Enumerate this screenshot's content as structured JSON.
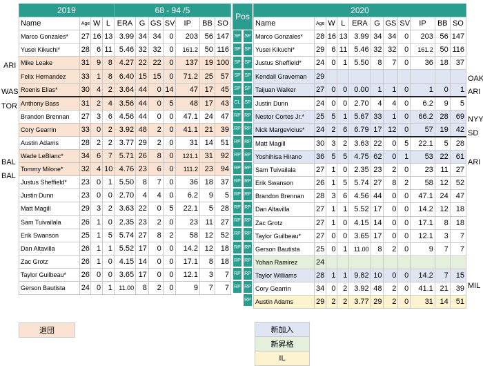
{
  "left": {
    "year": "2019",
    "record": "68 - 94 /5",
    "headers": [
      "Name",
      "Age",
      "W",
      "L",
      "ERA",
      "G",
      "GS",
      "SV",
      "IP",
      "BB",
      "SO"
    ],
    "rows": [
      {
        "cells": [
          "Marco Gonzales*",
          "27",
          "16",
          "13",
          "3.99",
          "34",
          "34",
          "0",
          "203",
          "56",
          "147"
        ],
        "style": ""
      },
      {
        "cells": [
          "Yusei Kikuchi*",
          "28",
          "6",
          "11",
          "5.46",
          "32",
          "32",
          "0",
          "161.2",
          "50",
          "116"
        ],
        "style": ""
      },
      {
        "cells": [
          "Mike Leake",
          "31",
          "9",
          "8",
          "4.27",
          "22",
          "22",
          "0",
          "137",
          "19",
          "100"
        ],
        "style": "left"
      },
      {
        "cells": [
          "Felix Hernandez",
          "33",
          "1",
          "8",
          "6.40",
          "15",
          "15",
          "0",
          "71.2",
          "25",
          "57"
        ],
        "style": "left"
      },
      {
        "cells": [
          "Roenis Elias*",
          "30",
          "4",
          "2",
          "3.64",
          "44",
          "0",
          "14",
          "47",
          "17",
          "45"
        ],
        "style": "left bd"
      },
      {
        "cells": [
          "Anthony Bass",
          "31",
          "2",
          "4",
          "3.56",
          "44",
          "0",
          "5",
          "48",
          "17",
          "43"
        ],
        "style": "left"
      },
      {
        "cells": [
          "Brandon Brennan",
          "27",
          "3",
          "6",
          "4.56",
          "44",
          "0",
          "0",
          "47.1",
          "24",
          "47"
        ],
        "style": ""
      },
      {
        "cells": [
          "Cory Gearrin",
          "33",
          "0",
          "2",
          "3.92",
          "48",
          "2",
          "0",
          "41.1",
          "21",
          "39"
        ],
        "style": "left"
      },
      {
        "cells": [
          "Austin Adams",
          "28",
          "2",
          "2",
          "3.77",
          "29",
          "2",
          "0",
          "31",
          "14",
          "51"
        ],
        "style": ""
      },
      {
        "cells": [
          "Wade LeBlanc*",
          "34",
          "6",
          "7",
          "5.71",
          "26",
          "8",
          "0",
          "121.1",
          "31",
          "92"
        ],
        "style": "left"
      },
      {
        "cells": [
          "Tommy Milone*",
          "32",
          "4",
          "10",
          "4.76",
          "23",
          "6",
          "0",
          "111.2",
          "23",
          "94"
        ],
        "style": "left"
      },
      {
        "cells": [
          "Justus Sheffield*",
          "23",
          "0",
          "1",
          "5.50",
          "8",
          "7",
          "0",
          "36",
          "18",
          "37"
        ],
        "style": ""
      },
      {
        "cells": [
          "Justin Dunn",
          "23",
          "0",
          "0",
          "2.70",
          "4",
          "4",
          "0",
          "6.2",
          "9",
          "5"
        ],
        "style": ""
      },
      {
        "cells": [
          "Matt Magill",
          "29",
          "3",
          "2",
          "3.63",
          "22",
          "0",
          "5",
          "22.1",
          "5",
          "28"
        ],
        "style": ""
      },
      {
        "cells": [
          "Sam Tuivailala",
          "26",
          "1",
          "0",
          "2.35",
          "23",
          "2",
          "0",
          "23",
          "11",
          "27"
        ],
        "style": ""
      },
      {
        "cells": [
          "Erik Swanson",
          "25",
          "1",
          "5",
          "5.74",
          "27",
          "8",
          "2",
          "58",
          "12",
          "52"
        ],
        "style": ""
      },
      {
        "cells": [
          "Dan Altavilla",
          "26",
          "1",
          "1",
          "5.52",
          "17",
          "0",
          "0",
          "14.2",
          "12",
          "18"
        ],
        "style": ""
      },
      {
        "cells": [
          "Zac Grotz",
          "26",
          "1",
          "0",
          "4.15",
          "14",
          "0",
          "0",
          "17.1",
          "8",
          "18"
        ],
        "style": ""
      },
      {
        "cells": [
          "Taylor Guilbeau*",
          "26",
          "0",
          "0",
          "3.65",
          "17",
          "0",
          "0",
          "12.1",
          "3",
          "7"
        ],
        "style": ""
      },
      {
        "cells": [
          "Gerson Bautista",
          "24",
          "0",
          "1",
          "11.00",
          "8",
          "2",
          "0",
          "9",
          "7",
          "7"
        ],
        "style": ""
      }
    ]
  },
  "right": {
    "year": "2020",
    "headers": [
      "Name",
      "Age",
      "W",
      "L",
      "ERA",
      "G",
      "GS",
      "SV",
      "IP",
      "BB",
      "SO"
    ],
    "rows": [
      {
        "cells": [
          "Marco Gonzales*",
          "28",
          "16",
          "13",
          "3.99",
          "34",
          "34",
          "0",
          "203",
          "56",
          "147"
        ],
        "style": ""
      },
      {
        "cells": [
          "Yusei Kikuchi*",
          "29",
          "6",
          "11",
          "5.46",
          "32",
          "32",
          "0",
          "161.2",
          "50",
          "116"
        ],
        "style": ""
      },
      {
        "cells": [
          "Justus Sheffield*",
          "24",
          "0",
          "1",
          "5.50",
          "8",
          "7",
          "0",
          "36",
          "18",
          "37"
        ],
        "style": ""
      },
      {
        "cells": [
          "Kendall Graveman",
          "29",
          "",
          "",
          "",
          "",
          "",
          "",
          "",
          "",
          ""
        ],
        "style": "new"
      },
      {
        "cells": [
          "Taijuan Walker",
          "27",
          "0",
          "0",
          "0.00",
          "1",
          "1",
          "0",
          "1",
          "0",
          "1"
        ],
        "style": "new bd"
      },
      {
        "cells": [
          "Justin Dunn",
          "24",
          "0",
          "0",
          "2.70",
          "4",
          "4",
          "0",
          "6.2",
          "9",
          "5"
        ],
        "style": ""
      },
      {
        "cells": [
          "Nestor Cortes Jr.*",
          "25",
          "5",
          "1",
          "5.67",
          "33",
          "1",
          "0",
          "66.2",
          "28",
          "69"
        ],
        "style": "new"
      },
      {
        "cells": [
          "Nick Margevicius*",
          "24",
          "2",
          "6",
          "6.79",
          "17",
          "12",
          "0",
          "57",
          "19",
          "42"
        ],
        "style": "new bd"
      },
      {
        "cells": [
          "Matt Magill",
          "30",
          "3",
          "2",
          "3.63",
          "22",
          "0",
          "5",
          "22.1",
          "5",
          "28"
        ],
        "style": ""
      },
      {
        "cells": [
          "Yoshihisa Hirano",
          "36",
          "5",
          "5",
          "4.75",
          "62",
          "0",
          "1",
          "53",
          "22",
          "61"
        ],
        "style": "new"
      },
      {
        "cells": [
          "Sam Tuivailala",
          "27",
          "1",
          "0",
          "2.35",
          "23",
          "2",
          "0",
          "23",
          "11",
          "27"
        ],
        "style": ""
      },
      {
        "cells": [
          "Erik Swanson",
          "26",
          "1",
          "5",
          "5.74",
          "27",
          "8",
          "2",
          "58",
          "12",
          "52"
        ],
        "style": ""
      },
      {
        "cells": [
          "Brandon Brennan",
          "28",
          "3",
          "6",
          "4.56",
          "44",
          "0",
          "0",
          "47.1",
          "24",
          "47"
        ],
        "style": ""
      },
      {
        "cells": [
          "Dan Altavilla",
          "27",
          "1",
          "1",
          "5.52",
          "17",
          "0",
          "0",
          "14.2",
          "12",
          "18"
        ],
        "style": ""
      },
      {
        "cells": [
          "Zac Grotz",
          "27",
          "1",
          "0",
          "4.15",
          "14",
          "0",
          "0",
          "17.1",
          "8",
          "18"
        ],
        "style": ""
      },
      {
        "cells": [
          "Taylor Guilbeau*",
          "27",
          "0",
          "0",
          "3.65",
          "17",
          "0",
          "0",
          "12.1",
          "3",
          "7"
        ],
        "style": ""
      },
      {
        "cells": [
          "Gerson Bautista",
          "25",
          "0",
          "1",
          "11.00",
          "8",
          "2",
          "0",
          "9",
          "7",
          "7"
        ],
        "style": ""
      },
      {
        "cells": [
          "Yohan Ramirez",
          "24",
          "",
          "",
          "",
          "",
          "",
          "",
          "",
          "",
          ""
        ],
        "style": "promo"
      },
      {
        "cells": [
          "Taylor Williams",
          "28",
          "1",
          "1",
          "9.82",
          "10",
          "0",
          "0",
          "14.2",
          "7",
          "15"
        ],
        "style": "new"
      },
      {
        "cells": [
          "Cory Gearrin",
          "34",
          "0",
          "2",
          "3.92",
          "48",
          "2",
          "0",
          "41.1",
          "21",
          "39"
        ],
        "style": ""
      },
      {
        "cells": [
          "Austin Adams",
          "29",
          "2",
          "2",
          "3.77",
          "29",
          "2",
          "0",
          "31",
          "14",
          "51"
        ],
        "style": "il"
      }
    ]
  },
  "pos": {
    "header": "Pos",
    "rows": [
      [
        "SP",
        "SP"
      ],
      [
        "SP",
        "SP"
      ],
      [
        "SP",
        "SP"
      ],
      [
        "SP",
        "SP"
      ],
      [
        "SP",
        "SP"
      ],
      [
        "CL",
        "SP"
      ],
      [
        "RP",
        "RP"
      ],
      [
        "RP",
        "RP"
      ],
      [
        "RP",
        "RP"
      ],
      [
        "RP",
        "RP"
      ],
      [
        "RP",
        "RP"
      ],
      [
        "RP",
        "RP"
      ],
      [
        "RP",
        "RP"
      ],
      [
        "RP",
        "RP"
      ],
      [
        "RP",
        "RP"
      ],
      [
        "RP",
        "RP"
      ],
      [
        "RP",
        "RP"
      ],
      [
        "RP",
        "RP"
      ],
      [
        "RP",
        "RP"
      ],
      [
        "RP",
        "RP"
      ],
      [
        "",
        "RP"
      ]
    ]
  },
  "teams_left": [
    "ARI",
    "WAS",
    "TOR",
    "BAL",
    "BAL"
  ],
  "teams_right": [
    "OAK",
    "ARI",
    "NYY",
    "SD",
    "ARI",
    "MIL"
  ],
  "legend": {
    "left_out": "退団",
    "new": "新加入",
    "promo": "新昇格",
    "il": "IL"
  },
  "colors": {
    "header": "#2a9d8f",
    "left_out": "#fbe3d4",
    "new": "#dfe5f3",
    "promo": "#e4efdc",
    "il": "#fdf3cf"
  }
}
